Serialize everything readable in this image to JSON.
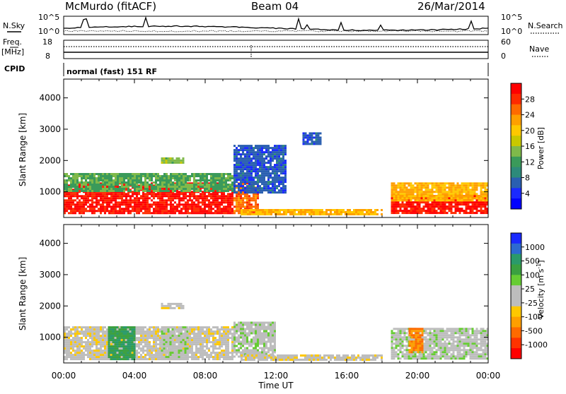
{
  "header": {
    "station": "McMurdo (fitACF)",
    "beam": "Beam 04",
    "date": "26/Mar/2014"
  },
  "strip": {
    "nsky_label": "N.Sky",
    "nsky_top": "10^5",
    "nsky_bottom": "10^0",
    "nsearch_label": "N.Search",
    "nsearch_top": "10^5",
    "nsearch_bottom": "10^0",
    "freq_label": "Freq.",
    "freq_unit": "[MHz]",
    "freq_top": "18",
    "freq_bottom": "8",
    "nave_label": "Nave",
    "nave_top": "60",
    "nave_bottom": "0",
    "cpid_label": "CPID",
    "cpid_text": "normal (fast) 151 RF"
  },
  "panels": {
    "ylabel": "Slant Range [km]",
    "xlabel": "Time UT",
    "yticks": [
      "4000",
      "3000",
      "2000",
      "1000"
    ],
    "xticks": [
      "00:00",
      "04:00",
      "08:00",
      "12:00",
      "16:00",
      "20:00",
      "00:00"
    ]
  },
  "power_bar": {
    "label": "Power [dB]",
    "ticks": [
      "28",
      "24",
      "20",
      "16",
      "12",
      "8",
      "4"
    ],
    "colors": [
      "#ff0000",
      "#ff2a00",
      "#ff6a00",
      "#ff9f00",
      "#ffc800",
      "#c8c800",
      "#7fb94a",
      "#3a9a5a",
      "#2d8a7a",
      "#2a5fb0",
      "#1a2aff",
      "#0000ff"
    ]
  },
  "velocity_bar": {
    "label": "Velocity [m s",
    "label_sup": "-1",
    "label_close": "]",
    "ticks": [
      "1000",
      "500",
      "100",
      "25",
      "-25",
      "-100",
      "-500",
      "-1000"
    ],
    "colors": [
      "#1a2aff",
      "#2d6ad0",
      "#2a9a6a",
      "#3aa040",
      "#66cc33",
      "#bdbdbd",
      "#bdbdbd",
      "#ffc800",
      "#ff9f00",
      "#ff6a00",
      "#ff3300",
      "#ff0000"
    ]
  },
  "chart_data": {
    "type": "heatmap",
    "title": "McMurdo (fitACF)",
    "x_range_hours": [
      0,
      24
    ],
    "y_range_km": [
      180,
      4600
    ],
    "xlabel": "Time UT",
    "ylabel": "Slant Range [km]",
    "panels": [
      {
        "name": "Power [dB]",
        "range": [
          0,
          30
        ],
        "bands": [
          {
            "t": [
              0.0,
              9.6
            ],
            "r": [
              300,
              1300
            ],
            "value": 28
          },
          {
            "t": [
              0.0,
              9.6
            ],
            "r": [
              1000,
              1600
            ],
            "value": 12
          },
          {
            "t": [
              5.5,
              6.8
            ],
            "r": [
              1900,
              2100
            ],
            "value": 14
          },
          {
            "t": [
              9.6,
              11.0
            ],
            "r": [
              350,
              1300
            ],
            "value": 24
          },
          {
            "t": [
              9.6,
              12.5
            ],
            "r": [
              1000,
              2500
            ],
            "value": 6
          },
          {
            "t": [
              10.0,
              18.0
            ],
            "r": [
              250,
              450
            ],
            "value": 20
          },
          {
            "t": [
              13.5,
              14.5
            ],
            "r": [
              2500,
              2900
            ],
            "value": 6
          },
          {
            "t": [
              18.5,
              24.0
            ],
            "r": [
              300,
              900
            ],
            "value": 28
          },
          {
            "t": [
              18.5,
              24.0
            ],
            "r": [
              700,
              1300
            ],
            "value": 20
          }
        ]
      },
      {
        "name": "Velocity [m s^-1]",
        "range": [
          -1000,
          1000
        ],
        "bands": [
          {
            "t": [
              0.0,
              9.6
            ],
            "r": [
              300,
              1350
            ],
            "value": -100
          },
          {
            "t": [
              2.5,
              4.0
            ],
            "r": [
              300,
              1350
            ],
            "value": 500
          },
          {
            "t": [
              5.5,
              7.0
            ],
            "r": [
              300,
              1350
            ],
            "value": 100
          },
          {
            "t": [
              5.5,
              6.8
            ],
            "r": [
              1900,
              2100
            ],
            "value": -100
          },
          {
            "t": [
              9.6,
              12.0
            ],
            "r": [
              400,
              1500
            ],
            "value": 100
          },
          {
            "t": [
              10.0,
              18.0
            ],
            "r": [
              250,
              450
            ],
            "value": -100
          },
          {
            "t": [
              18.5,
              24.0
            ],
            "r": [
              300,
              1300
            ],
            "value": 100
          },
          {
            "t": [
              19.5,
              20.3
            ],
            "r": [
              500,
              1300
            ],
            "value": -500
          }
        ]
      }
    ]
  }
}
